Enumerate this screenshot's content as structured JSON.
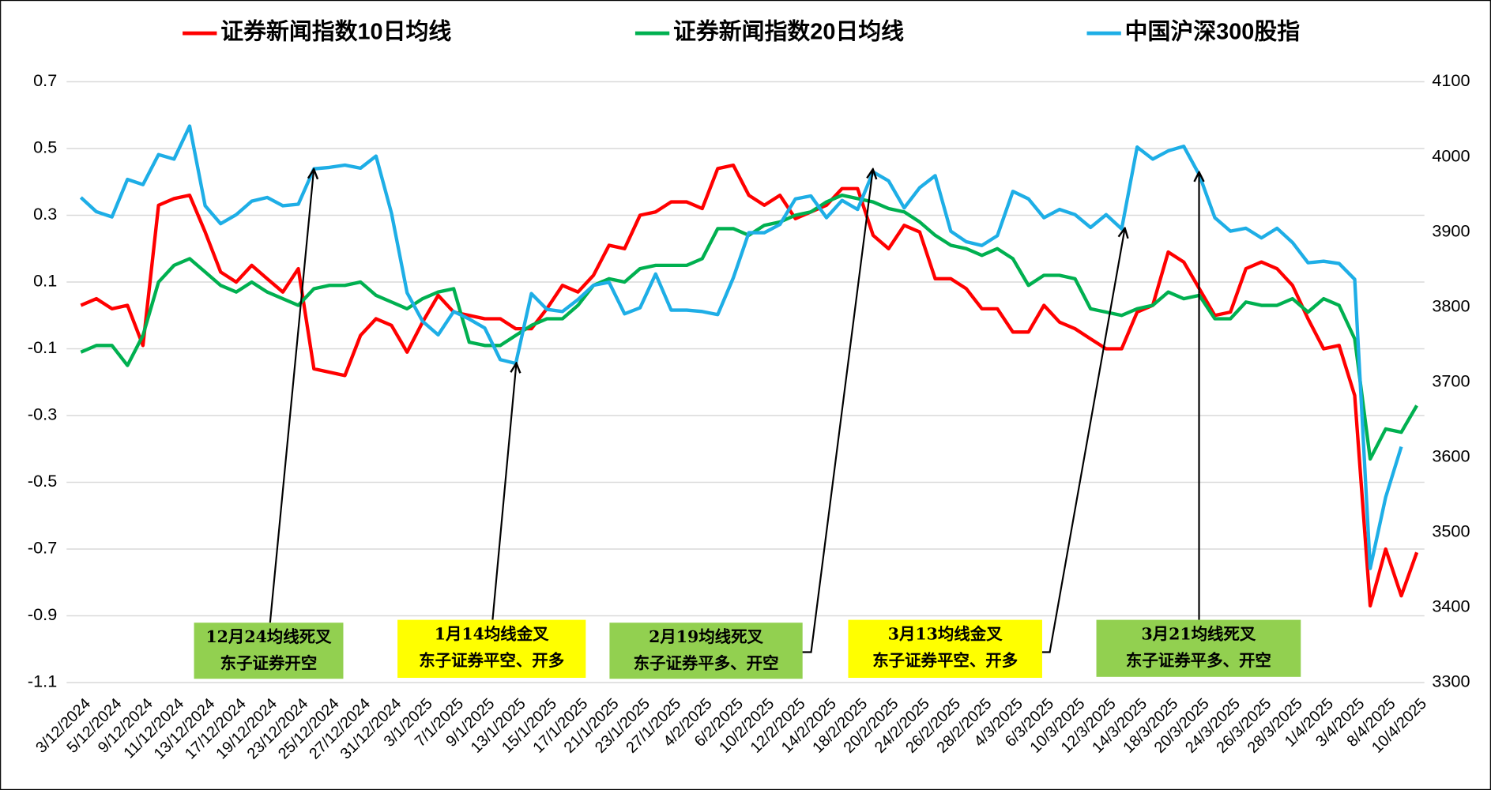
{
  "chart_data": {
    "type": "line",
    "categories": [
      "3/12/2024",
      null,
      "5/12/2024",
      null,
      "9/12/2024",
      null,
      "11/12/2024",
      null,
      "13/12/2024",
      null,
      "17/12/2024",
      null,
      "19/12/2024",
      null,
      "23/12/2024",
      null,
      "25/12/2024",
      null,
      "27/12/2024",
      null,
      "31/12/2024",
      null,
      "3/1/2025",
      null,
      "7/1/2025",
      null,
      "9/1/2025",
      null,
      "13/1/2025",
      null,
      "15/1/2025",
      null,
      "17/1/2025",
      null,
      "21/1/2025",
      null,
      "23/1/2025",
      null,
      "27/1/2025",
      null,
      "4/2/2025",
      null,
      "6/2/2025",
      null,
      "10/2/2025",
      null,
      "12/2/2025",
      null,
      "14/2/2025",
      null,
      "18/2/2025",
      null,
      "20/2/2025",
      null,
      "24/2/2025",
      null,
      "26/2/2025",
      null,
      "28/2/2025",
      null,
      "4/3/2025",
      null,
      "6/3/2025",
      null,
      "10/3/2025",
      null,
      "12/3/2025",
      null,
      "14/3/2025",
      null,
      "18/3/2025",
      null,
      "20/3/2025",
      null,
      "24/3/2025",
      null,
      "26/3/2025",
      null,
      "28/3/2025",
      null,
      "1/4/2025",
      null,
      "3/4/2025",
      null,
      "8/4/2025",
      null,
      "10/4/2025"
    ],
    "series": [
      {
        "name": "证券新闻指数10日均线",
        "color": "#ff0000",
        "values": [
          0.03,
          0.05,
          0.02,
          0.03,
          -0.09,
          0.33,
          0.35,
          0.36,
          0.25,
          0.13,
          0.1,
          0.15,
          0.11,
          0.07,
          0.14,
          -0.16,
          -0.17,
          -0.18,
          -0.06,
          -0.01,
          -0.03,
          -0.11,
          -0.02,
          0.06,
          0.01,
          0.0,
          -0.01,
          -0.01,
          -0.04,
          -0.04,
          0.02,
          0.09,
          0.07,
          0.12,
          0.21,
          0.2,
          0.3,
          0.31,
          0.34,
          0.34,
          0.32,
          0.44,
          0.45,
          0.36,
          0.33,
          0.36,
          0.29,
          0.31,
          0.33,
          0.38,
          0.38,
          0.24,
          0.2,
          0.27,
          0.25,
          0.11,
          0.11,
          0.08,
          0.02,
          0.02,
          -0.05,
          -0.05,
          0.03,
          -0.02,
          -0.04,
          -0.07,
          -0.1,
          -0.1,
          0.01,
          0.03,
          0.19,
          0.16,
          0.08,
          0.0,
          0.01,
          0.14,
          0.16,
          0.14,
          0.09,
          -0.01,
          -0.1,
          -0.09,
          -0.24,
          -0.87,
          -0.7,
          -0.84,
          -0.71
        ]
      },
      {
        "name": "证券新闻指数20日均线",
        "color": "#00b050",
        "values": [
          -0.11,
          -0.09,
          -0.09,
          -0.15,
          -0.06,
          0.1,
          0.15,
          0.17,
          0.13,
          0.09,
          0.07,
          0.1,
          0.07,
          0.05,
          0.03,
          0.08,
          0.09,
          0.09,
          0.1,
          0.06,
          0.04,
          0.02,
          0.05,
          0.07,
          0.08,
          -0.08,
          -0.09,
          -0.09,
          -0.06,
          -0.03,
          -0.01,
          -0.01,
          0.03,
          0.09,
          0.11,
          0.1,
          0.14,
          0.15,
          0.15,
          0.15,
          0.17,
          0.26,
          0.26,
          0.24,
          0.27,
          0.28,
          0.3,
          0.31,
          0.34,
          0.36,
          0.35,
          0.34,
          0.32,
          0.31,
          0.28,
          0.24,
          0.21,
          0.2,
          0.18,
          0.2,
          0.17,
          0.09,
          0.12,
          0.12,
          0.11,
          0.02,
          0.01,
          0.0,
          0.02,
          0.03,
          0.07,
          0.05,
          0.06,
          -0.01,
          -0.01,
          0.04,
          0.03,
          0.03,
          0.05,
          0.01,
          0.05,
          0.03,
          -0.07,
          -0.43,
          -0.34,
          -0.35,
          -0.27
        ]
      },
      {
        "name": "中国沪深300股指",
        "color": "#1eaee6",
        "axis": "y2",
        "values": [
          3946,
          3927,
          3920,
          3970,
          3963,
          4003,
          3997,
          4041,
          3935,
          3911,
          3923,
          3941,
          3946,
          3935,
          3937,
          3984,
          3986,
          3989,
          3985,
          4001,
          3925,
          3819,
          3781,
          3763,
          3794,
          3784,
          3772,
          3730,
          3725,
          3818,
          3797,
          3794,
          3810,
          3829,
          3833,
          3791,
          3799,
          3844,
          3796,
          3796,
          3794,
          3790,
          3839,
          3899,
          3899,
          3910,
          3944,
          3948,
          3919,
          3942,
          3930,
          3980,
          3968,
          3932,
          3959,
          3975,
          3901,
          3887,
          3882,
          3895,
          3954,
          3944,
          3919,
          3930,
          3923,
          3906,
          3923,
          3904,
          4013,
          3997,
          4008,
          4014,
          3976,
          3919,
          3901,
          3905,
          3892,
          3905,
          3886,
          3859,
          3861,
          3858,
          3837,
          3452,
          3547,
          3614,
          null
        ]
      }
    ],
    "ylim": [
      -1.1,
      0.7
    ],
    "yticks": [
      0.7,
      0.5,
      0.3,
      0.1,
      -0.1,
      -0.3,
      -0.5,
      -0.7,
      -0.9,
      -1.1
    ],
    "y2lim": [
      3300,
      4100
    ],
    "y2ticks": [
      4100,
      4000,
      3900,
      3800,
      3700,
      3600,
      3500,
      3400,
      3300
    ],
    "grid": true,
    "legend": "top",
    "annotations": [
      {
        "lines": [
          "12月24均线死叉",
          "东子证券开空"
        ],
        "color": "#92d050"
      },
      {
        "lines": [
          "1月14均线金叉",
          "东子证券平空、开多"
        ],
        "color": "#ffff00"
      },
      {
        "lines": [
          "2月19均线死叉",
          "东子证券平多、开空"
        ],
        "color": "#92d050"
      },
      {
        "lines": [
          "3月13均线金叉",
          "东子证券平空、开多"
        ],
        "color": "#ffff00"
      },
      {
        "lines": [
          "3月21均线死叉",
          "东子证券平多、开空"
        ],
        "color": "#92d050"
      }
    ]
  }
}
